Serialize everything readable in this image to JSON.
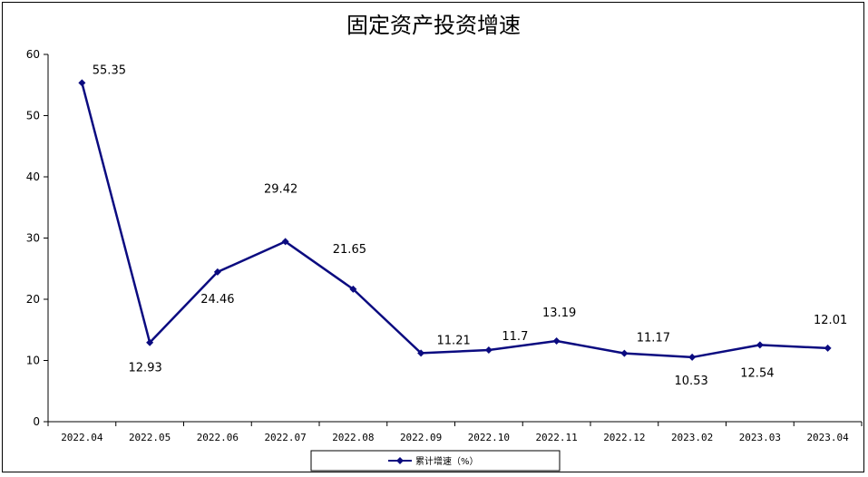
{
  "chart_data": {
    "type": "line",
    "title": "固定资产投资增速",
    "xlabel": "",
    "ylabel": "",
    "categories": [
      "2022.04",
      "2022.05",
      "2022.06",
      "2022.07",
      "2022.08",
      "2022.09",
      "2022.10",
      "2022.11",
      "2022.12",
      "2023.02",
      "2023.03",
      "2023.04"
    ],
    "series": [
      {
        "name": "累计增速（%）",
        "values": [
          55.35,
          12.93,
          24.46,
          29.42,
          21.65,
          11.21,
          11.7,
          13.19,
          11.17,
          10.53,
          12.54,
          12.01
        ],
        "data_labels": [
          "55.35",
          "12.93",
          "24.46",
          "29.42",
          "21.65",
          "11.21",
          "11.7",
          "13.19",
          "11.17",
          "10.53",
          "12.54",
          "12.01"
        ]
      }
    ],
    "yticks": [
      "0",
      "10",
      "20",
      "30",
      "40",
      "50",
      "60"
    ],
    "ylim": [
      0,
      60
    ],
    "grid": false,
    "legend": "bottom",
    "colors": {
      "line": "#0b0b80",
      "axis": "#000000"
    }
  }
}
